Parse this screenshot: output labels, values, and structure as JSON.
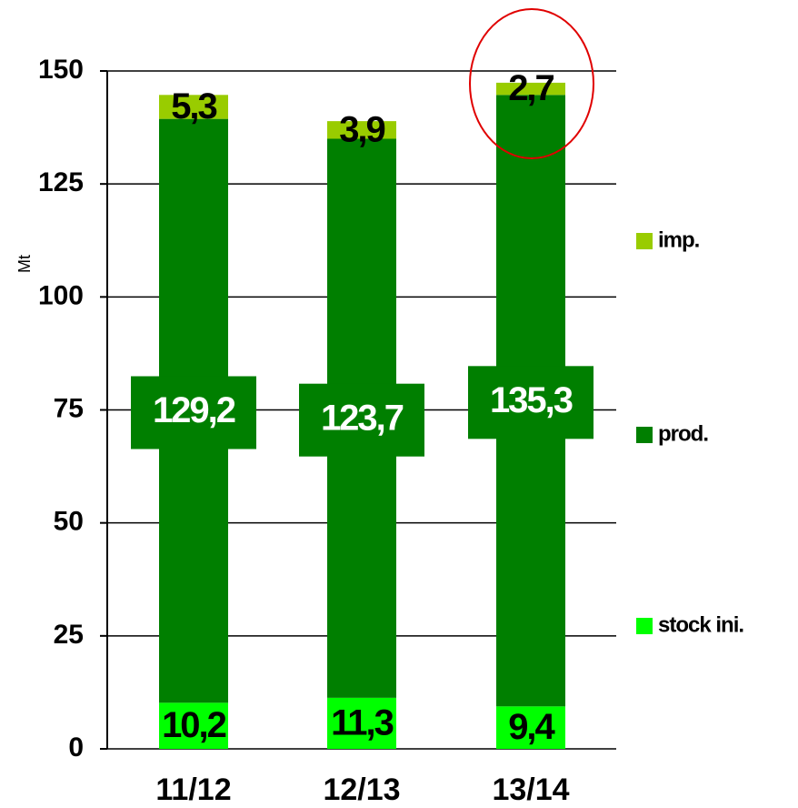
{
  "chart_data": {
    "type": "stacked_bar",
    "y_label": "Mt",
    "categories": [
      "11/12",
      "12/13",
      "13/14"
    ],
    "series": [
      {
        "name": "stock ini.",
        "color": "#00ff00",
        "values": [
          10.2,
          11.3,
          9.4
        ],
        "value_labels": [
          "10,2",
          "11,3",
          "9,4"
        ]
      },
      {
        "name": "prod.",
        "color": "#007f00",
        "values": [
          129.2,
          123.7,
          135.3
        ],
        "value_labels": [
          "129,2",
          "123,7",
          "135,3"
        ]
      },
      {
        "name": "imp.",
        "color": "#99cc00",
        "values": [
          5.3,
          3.9,
          2.7
        ],
        "value_labels": [
          "5,3",
          "3,9",
          "2,7"
        ]
      }
    ],
    "ylim": [
      0,
      150
    ],
    "yticks": [
      0,
      25,
      50,
      75,
      100,
      125,
      150
    ],
    "grid": true,
    "legend": "right"
  }
}
